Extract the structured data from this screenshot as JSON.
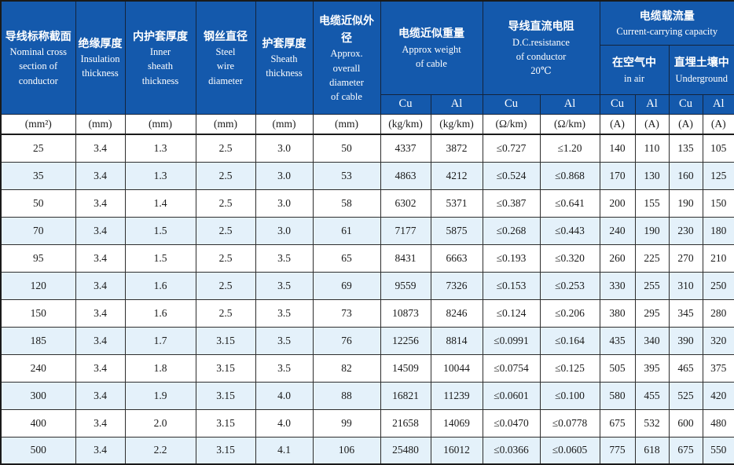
{
  "colors": {
    "header_bg": "#1459AC",
    "header_text": "#FFFFFF",
    "row_bg": "#FFFFFF",
    "row_alt_bg": "#E4F1FA",
    "border": "#2E2E2E",
    "body_text": "#1A1A1A"
  },
  "header": {
    "simple_columns": [
      {
        "zh": "导线标称截面",
        "en": "Nominal  cross\nsection of\nconductor"
      },
      {
        "zh": "绝缘厚度",
        "en": "Insulation\nthickness"
      },
      {
        "zh": "内护套厚度",
        "en": "Inner\nsheath\nthickness"
      },
      {
        "zh": "钢丝直径",
        "en": "Steel\nwire\ndiameter"
      },
      {
        "zh": "护套厚度",
        "en": "Sheath\nthickness"
      },
      {
        "zh": "电缆近似外径",
        "en": "Approx.\noverall\ndiameter\nof cable"
      }
    ],
    "weight_group": {
      "zh": "电缆近似重量",
      "en": "Approx weight\nof cable"
    },
    "resistance_group": {
      "zh": "导线直流电阻",
      "en": "D.C.resistance\nof conductor\n20℃"
    },
    "capacity_group": {
      "zh": "电缆载流量",
      "en": "Current-carrying capacity"
    },
    "capacity_sub": [
      {
        "zh": "在空气中",
        "en": "in air"
      },
      {
        "zh": "直埋土壤中",
        "en": "Underground"
      }
    ],
    "metal_labels": [
      "Cu",
      "Al",
      "Cu",
      "Al",
      "Cu",
      "Al",
      "Cu",
      "Al"
    ],
    "units": [
      "(mm²)",
      "(mm)",
      "(mm)",
      "(mm)",
      "(mm)",
      "(mm)",
      "(kg/km)",
      "(kg/km)",
      "(Ω/km)",
      "(Ω/km)",
      "(A)",
      "(A)",
      "(A)",
      "(A)"
    ]
  },
  "rows": [
    [
      "25",
      "3.4",
      "1.3",
      "2.5",
      "3.0",
      "50",
      "4337",
      "3872",
      "≤0.727",
      "≤1.20",
      "140",
      "110",
      "135",
      "105"
    ],
    [
      "35",
      "3.4",
      "1.3",
      "2.5",
      "3.0",
      "53",
      "4863",
      "4212",
      "≤0.524",
      "≤0.868",
      "170",
      "130",
      "160",
      "125"
    ],
    [
      "50",
      "3.4",
      "1.4",
      "2.5",
      "3.0",
      "58",
      "6302",
      "5371",
      "≤0.387",
      "≤0.641",
      "200",
      "155",
      "190",
      "150"
    ],
    [
      "70",
      "3.4",
      "1.5",
      "2.5",
      "3.0",
      "61",
      "7177",
      "5875",
      "≤0.268",
      "≤0.443",
      "240",
      "190",
      "230",
      "180"
    ],
    [
      "95",
      "3.4",
      "1.5",
      "2.5",
      "3.5",
      "65",
      "8431",
      "6663",
      "≤0.193",
      "≤0.320",
      "260",
      "225",
      "270",
      "210"
    ],
    [
      "120",
      "3.4",
      "1.6",
      "2.5",
      "3.5",
      "69",
      "9559",
      "7326",
      "≤0.153",
      "≤0.253",
      "330",
      "255",
      "310",
      "250"
    ],
    [
      "150",
      "3.4",
      "1.6",
      "2.5",
      "3.5",
      "73",
      "10873",
      "8246",
      "≤0.124",
      "≤0.206",
      "380",
      "295",
      "345",
      "280"
    ],
    [
      "185",
      "3.4",
      "1.7",
      "3.15",
      "3.5",
      "76",
      "12256",
      "8814",
      "≤0.0991",
      "≤0.164",
      "435",
      "340",
      "390",
      "320"
    ],
    [
      "240",
      "3.4",
      "1.8",
      "3.15",
      "3.5",
      "82",
      "14509",
      "10044",
      "≤0.0754",
      "≤0.125",
      "505",
      "395",
      "465",
      "375"
    ],
    [
      "300",
      "3.4",
      "1.9",
      "3.15",
      "4.0",
      "88",
      "16821",
      "11239",
      "≤0.0601",
      "≤0.100",
      "580",
      "455",
      "525",
      "420"
    ],
    [
      "400",
      "3.4",
      "2.0",
      "3.15",
      "4.0",
      "99",
      "21658",
      "14069",
      "≤0.0470",
      "≤0.0778",
      "675",
      "532",
      "600",
      "480"
    ],
    [
      "500",
      "3.4",
      "2.2",
      "3.15",
      "4.1",
      "106",
      "25480",
      "16012",
      "≤0.0366",
      "≤0.0605",
      "775",
      "618",
      "675",
      "550"
    ]
  ]
}
